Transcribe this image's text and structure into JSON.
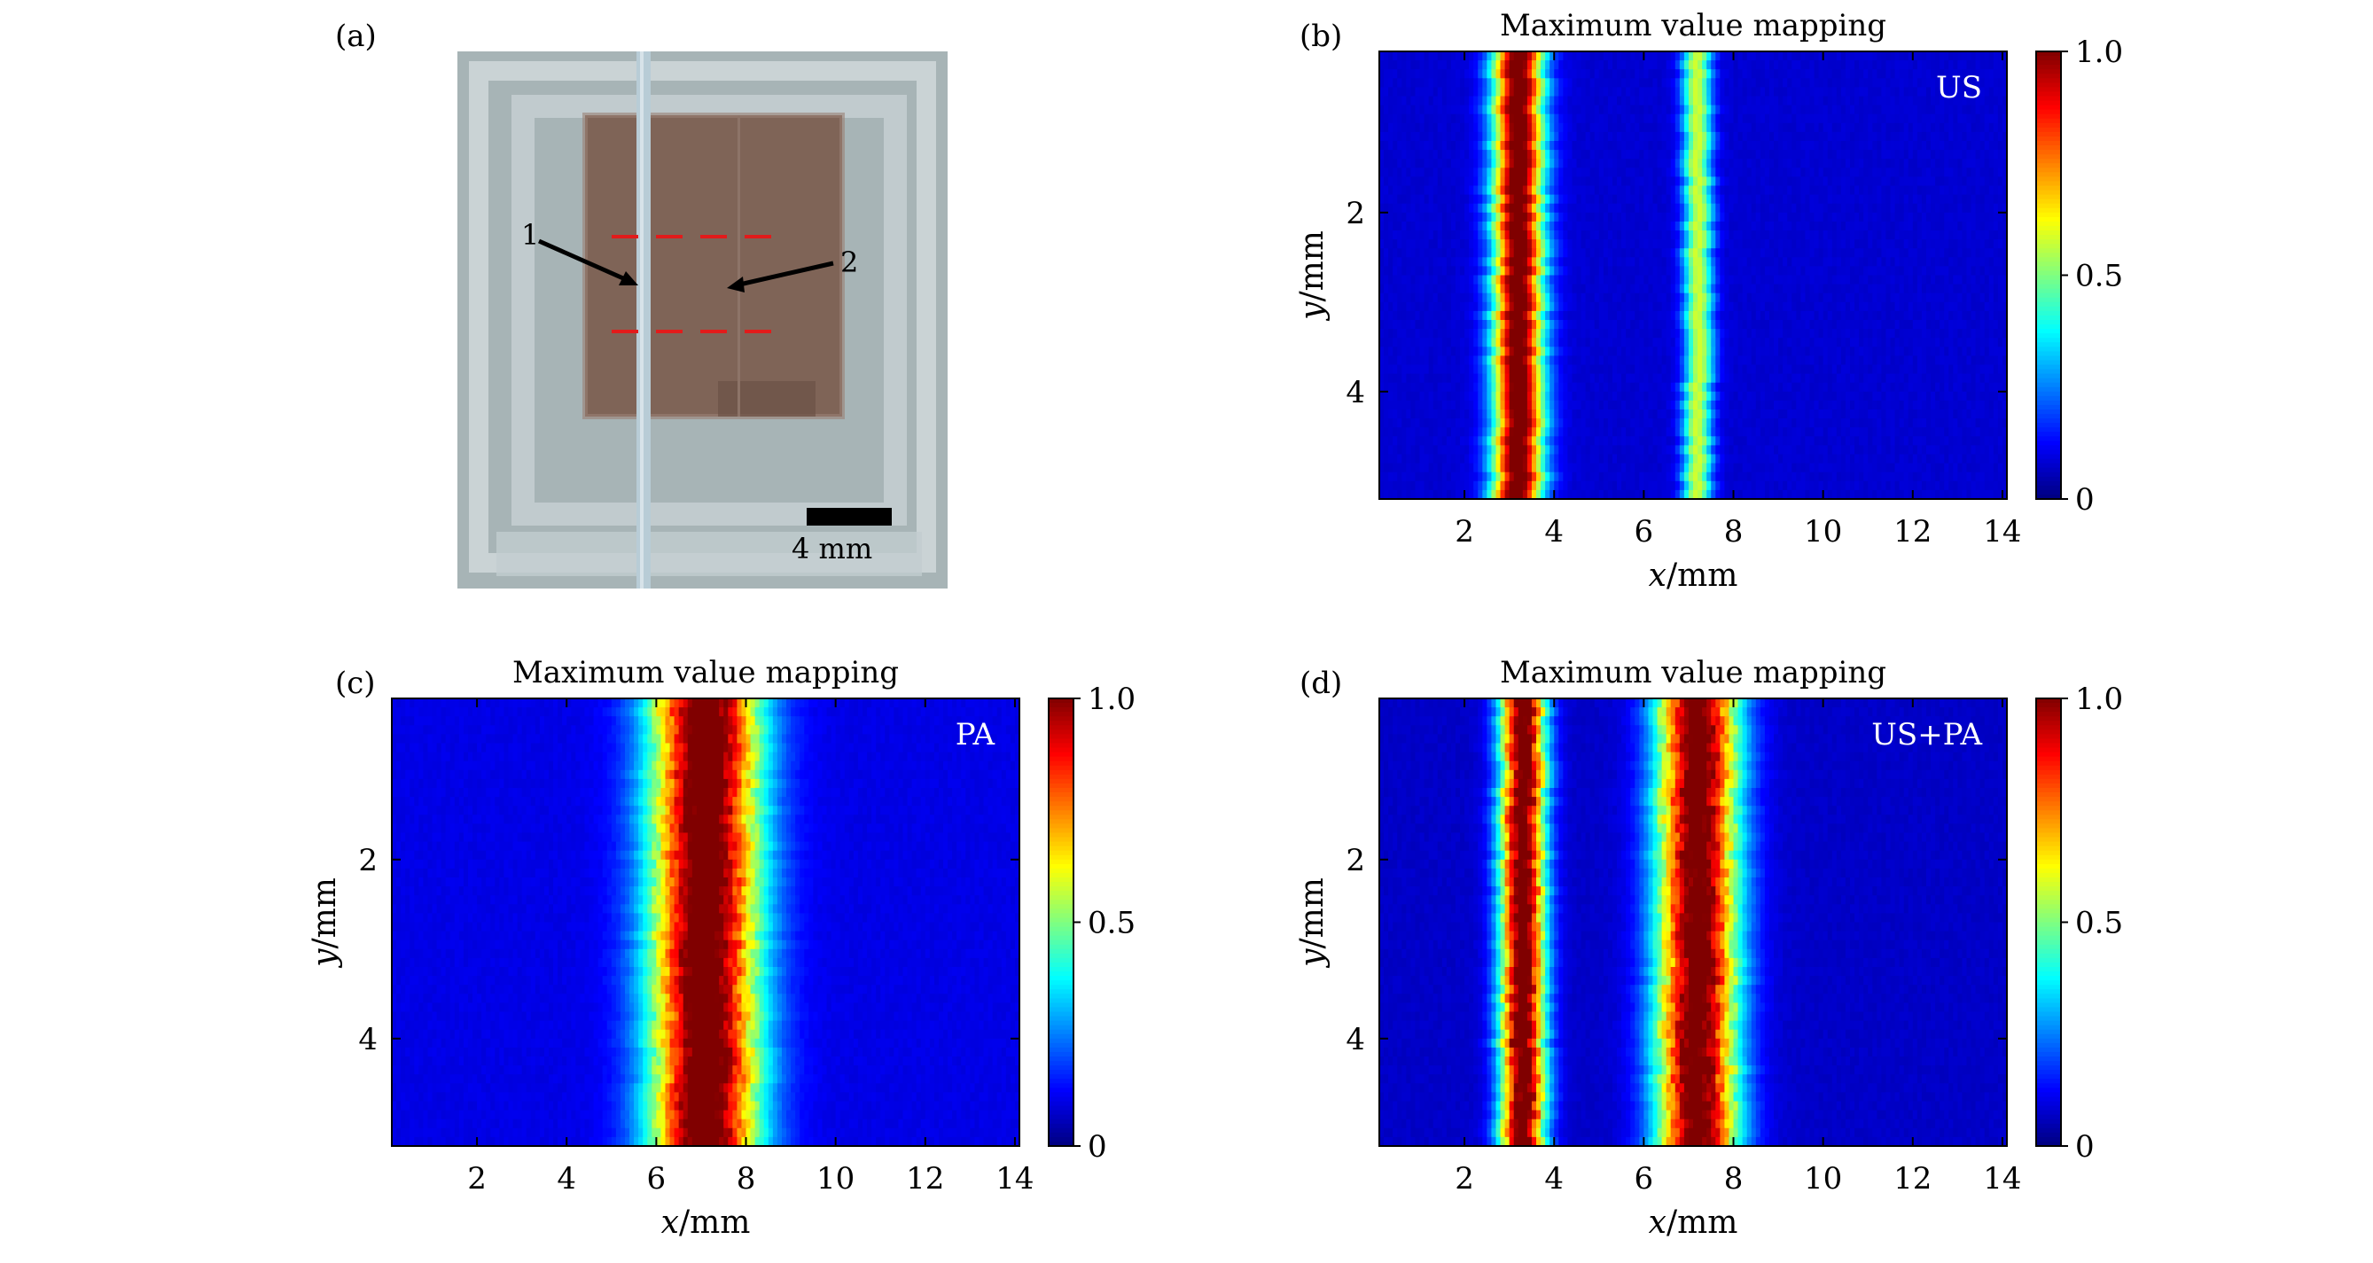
{
  "photo_panel": {
    "label": "(a)",
    "arrow_labels": [
      "1",
      "2"
    ],
    "scale_bar_label": "4 mm"
  },
  "chart_data": [
    {
      "panel": "(b)",
      "type": "heatmap",
      "title": "Maximum value mapping",
      "corner_label": "US",
      "xlabel": "x/mm",
      "ylabel": "y/mm",
      "xlim": [
        0.1,
        14.1
      ],
      "ylim": [
        0.2,
        5.2
      ],
      "y_inverted": true,
      "xticks": [
        2,
        4,
        6,
        8,
        10,
        12,
        14
      ],
      "yticks": [
        2,
        4
      ],
      "colorbar": {
        "range": [
          0,
          1
        ],
        "ticks": [
          0,
          0.5,
          1.0
        ],
        "tick_labels": [
          "0",
          "0.5",
          "1.0"
        ],
        "colormap": "jet"
      },
      "profile_peaks": [
        {
          "x": 3.2,
          "width": 0.55,
          "amp": 1.0,
          "speckle": 0.0
        },
        {
          "x": 7.2,
          "width": 0.32,
          "amp": 0.5,
          "speckle": 0.0
        }
      ],
      "background": 0.08
    },
    {
      "panel": "(c)",
      "type": "heatmap",
      "title": "Maximum value mapping",
      "corner_label": "PA",
      "xlabel": "x/mm",
      "ylabel": "y/mm",
      "xlim": [
        0.1,
        14.1
      ],
      "ylim": [
        0.2,
        5.2
      ],
      "y_inverted": true,
      "xticks": [
        2,
        4,
        6,
        8,
        10,
        12,
        14
      ],
      "yticks": [
        2,
        4
      ],
      "colorbar": {
        "range": [
          0,
          1
        ],
        "ticks": [
          0,
          0.5,
          1.0
        ],
        "tick_labels": [
          "0",
          "0.5",
          "1.0"
        ],
        "colormap": "jet"
      },
      "profile_peaks": [
        {
          "x": 7.1,
          "width": 1.2,
          "amp": 1.0,
          "speckle": 0.06
        }
      ],
      "background": 0.1
    },
    {
      "panel": "(d)",
      "type": "heatmap",
      "title": "Maximum value mapping",
      "corner_label": "US+PA",
      "xlabel": "x/mm",
      "ylabel": "y/mm",
      "xlim": [
        0.1,
        14.1
      ],
      "ylim": [
        0.2,
        5.2
      ],
      "y_inverted": true,
      "xticks": [
        2,
        4,
        6,
        8,
        10,
        12,
        14
      ],
      "yticks": [
        2,
        4
      ],
      "colorbar": {
        "range": [
          0,
          1
        ],
        "ticks": [
          0,
          0.5,
          1.0
        ],
        "tick_labels": [
          "0",
          "0.5",
          "1.0"
        ],
        "colormap": "jet"
      },
      "profile_peaks": [
        {
          "x": 3.3,
          "width": 0.5,
          "amp": 1.0,
          "speckle": 0.07
        },
        {
          "x": 7.2,
          "width": 0.9,
          "amp": 1.0,
          "speckle": 0.07
        }
      ],
      "background": 0.07
    }
  ]
}
